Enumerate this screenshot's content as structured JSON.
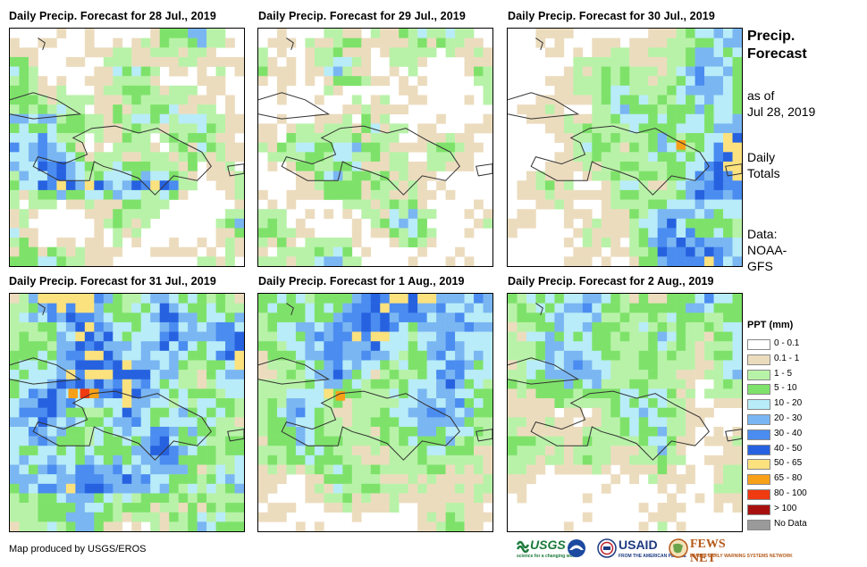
{
  "panels": [
    {
      "title": "Daily Precip. Forecast for 28 Jul., 2019",
      "seed": 11,
      "profile": "light"
    },
    {
      "title": "Daily Precip. Forecast for 29 Jul., 2019",
      "seed": 23,
      "profile": "dry"
    },
    {
      "title": "Daily Precip. Forecast for 30 Jul., 2019",
      "seed": 37,
      "profile": "east-heavy"
    },
    {
      "title": "Daily Precip. Forecast for 31 Jul., 2019",
      "seed": 41,
      "profile": "wet"
    },
    {
      "title": "Daily Precip. Forecast for 1 Aug., 2019",
      "seed": 53,
      "profile": "north-heavy"
    },
    {
      "title": "Daily Precip. Forecast for 2 Aug., 2019",
      "seed": 67,
      "profile": "northwest"
    }
  ],
  "side": {
    "title_line1": "Precip.",
    "title_line2": "Forecast",
    "asof_line1": "as of",
    "asof_line2": "Jul 28, 2019",
    "totals_line1": "Daily",
    "totals_line2": "Totals",
    "source_line1": "Data:",
    "source_line2": "NOAA-",
    "source_line3": "GFS"
  },
  "legend": {
    "title": "PPT (mm)",
    "items": [
      {
        "label": "0 - 0.1",
        "color": "#ffffff"
      },
      {
        "label": "0.1 - 1",
        "color": "#ecdcbe"
      },
      {
        "label": "1 - 5",
        "color": "#b8f2a8"
      },
      {
        "label": "5 - 10",
        "color": "#7ee26a"
      },
      {
        "label": "10 - 20",
        "color": "#b8ecf8"
      },
      {
        "label": "20 - 30",
        "color": "#7ab6f2"
      },
      {
        "label": "30 - 40",
        "color": "#4a8cf0"
      },
      {
        "label": "40 - 50",
        "color": "#2662e0"
      },
      {
        "label": "50 - 65",
        "color": "#fce27e"
      },
      {
        "label": "65 - 80",
        "color": "#f8a018"
      },
      {
        "label": "80 - 100",
        "color": "#f03a10"
      },
      {
        "label": "> 100",
        "color": "#a81010"
      },
      {
        "label": "No Data",
        "color": "#9a9a9a"
      }
    ]
  },
  "credit": "Map produced by USGS/EROS",
  "logos": {
    "usgs": "USGS",
    "usgs_tag": "science for a changing world",
    "usaid": "USAID",
    "usaid_tag": "FROM THE AMERICAN PEOPLE",
    "fewsnet": "FEWS NET",
    "fewsnet_tag": "FAMINE EARLY WARNING SYSTEMS NETWORK"
  }
}
